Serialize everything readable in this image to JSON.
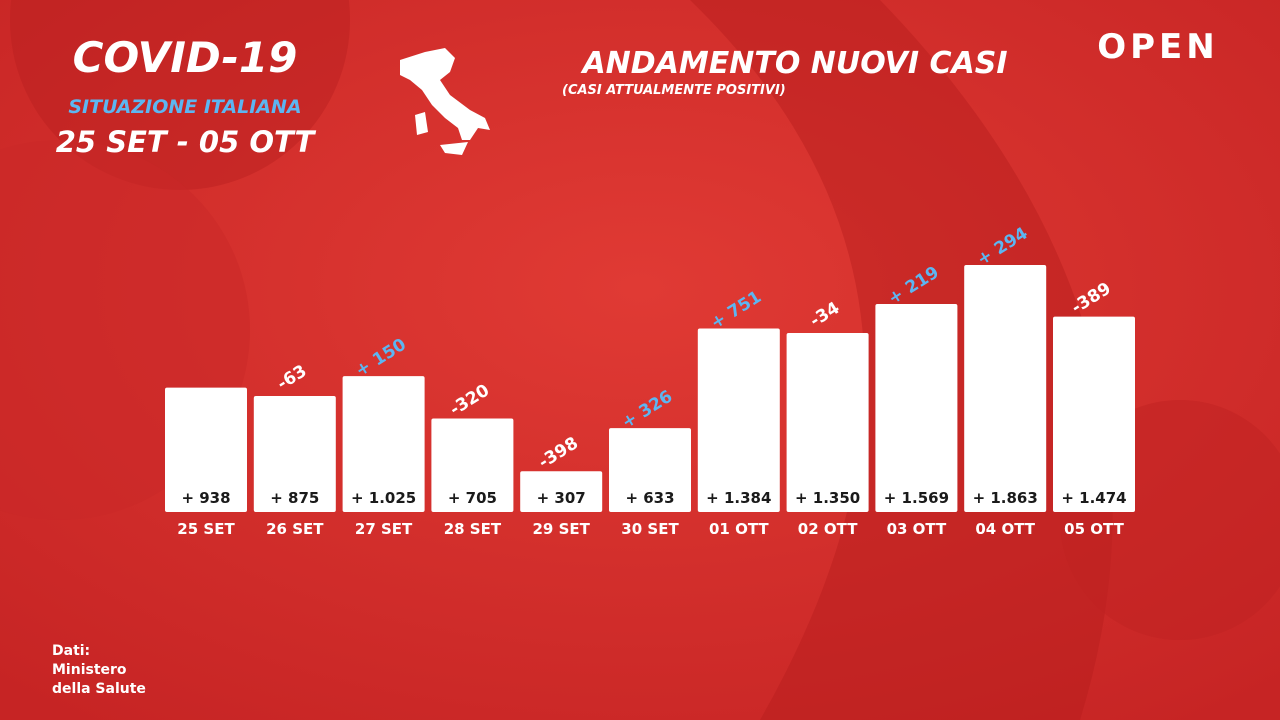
{
  "chart_data": {
    "type": "bar",
    "title": "ANDAMENTO NUOVI CASI",
    "subtitle": "(CASI ATTUALMENTE POSITIVI)",
    "header": {
      "title": "COVID-19",
      "subtitle": "SITUAZIONE ITALIANA",
      "period": "25 SET - 05 OTT"
    },
    "brand": "OPEN",
    "source": [
      "Dati:",
      "Ministero",
      "della Salute"
    ],
    "categories": [
      "25 SET",
      "26 SET",
      "27 SET",
      "28 SET",
      "29 SET",
      "30 SET",
      "01 OTT",
      "02 OTT",
      "03 OTT",
      "04 OTT",
      "05 OTT"
    ],
    "values": [
      938,
      875,
      1025,
      705,
      307,
      633,
      1384,
      1350,
      1569,
      1863,
      1474
    ],
    "value_labels": [
      "+ 938",
      "+ 875",
      "+ 1.025",
      "+ 705",
      "+ 307",
      "+ 633",
      "+ 1.384",
      "+ 1.350",
      "+ 1.569",
      "+ 1.863",
      "+ 1.474"
    ],
    "changes": [
      null,
      -63,
      150,
      -320,
      -398,
      326,
      751,
      -34,
      219,
      294,
      -389
    ],
    "change_labels": [
      null,
      "-63",
      "+ 150",
      "-320",
      "-398",
      "+ 326",
      "+ 751",
      "-34",
      "+ 219",
      "+ 294",
      "-389"
    ],
    "color": "#ffffff",
    "positive_color": "#5cb6f2",
    "negative_color": "#ffffff"
  }
}
